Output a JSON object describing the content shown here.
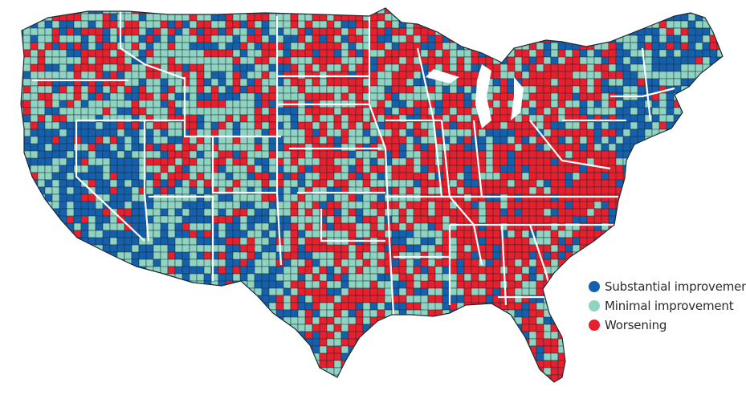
{
  "colors": {
    "substantial": "#1460ad",
    "minimal": "#8fd3c1",
    "worsening": "#e8202d",
    "county_border": "#1a2a35",
    "state_border": "#ffffff"
  },
  "legend": {
    "items": [
      {
        "key": "substantial",
        "label": "Substantial improvement",
        "color": "#1460ad"
      },
      {
        "key": "minimal",
        "label": "Minimal improvement",
        "color": "#8fd3c1"
      },
      {
        "key": "worsening",
        "label": "Worsening",
        "color": "#e8202d"
      }
    ]
  }
}
